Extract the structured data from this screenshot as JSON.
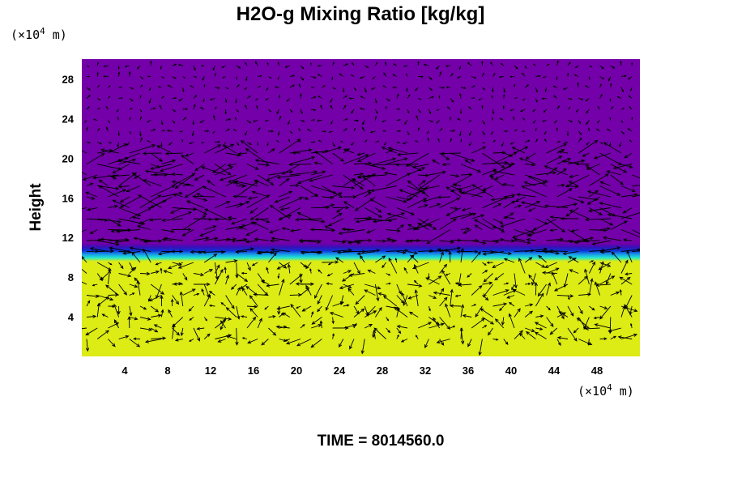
{
  "chart_data": {
    "type": "heatmap",
    "title": "H2O-g Mixing Ratio [kg/kg]",
    "ylabel": "Height",
    "xlabel": "",
    "x_units": {
      "prefix": "(×10",
      "exp": "4",
      "suffix": " m)"
    },
    "y_units": {
      "prefix": "(×10",
      "exp": "4",
      "suffix": " m)"
    },
    "xlim": [
      0,
      52
    ],
    "ylim": [
      0,
      30
    ],
    "x_ticks": [
      4,
      8,
      12,
      16,
      20,
      24,
      28,
      32,
      36,
      40,
      44,
      48
    ],
    "y_ticks": [
      4,
      8,
      12,
      16,
      20,
      24,
      28
    ],
    "fields": [
      {
        "name": "upper",
        "y_range": [
          11,
          30
        ],
        "color": "#7300a8"
      },
      {
        "name": "lower",
        "y_range": [
          0,
          10
        ],
        "color": "#dcec14"
      }
    ],
    "transition": {
      "center_height": 10.6,
      "colors": [
        "#dcec14",
        "#22e6d0",
        "#1896e8",
        "#0d2fd2",
        "#3a10b8",
        "#7300a8"
      ]
    },
    "time_text": "TIME = 8014560.0",
    "colors": {
      "arrow": "#000000",
      "background": "#ffffff"
    }
  }
}
